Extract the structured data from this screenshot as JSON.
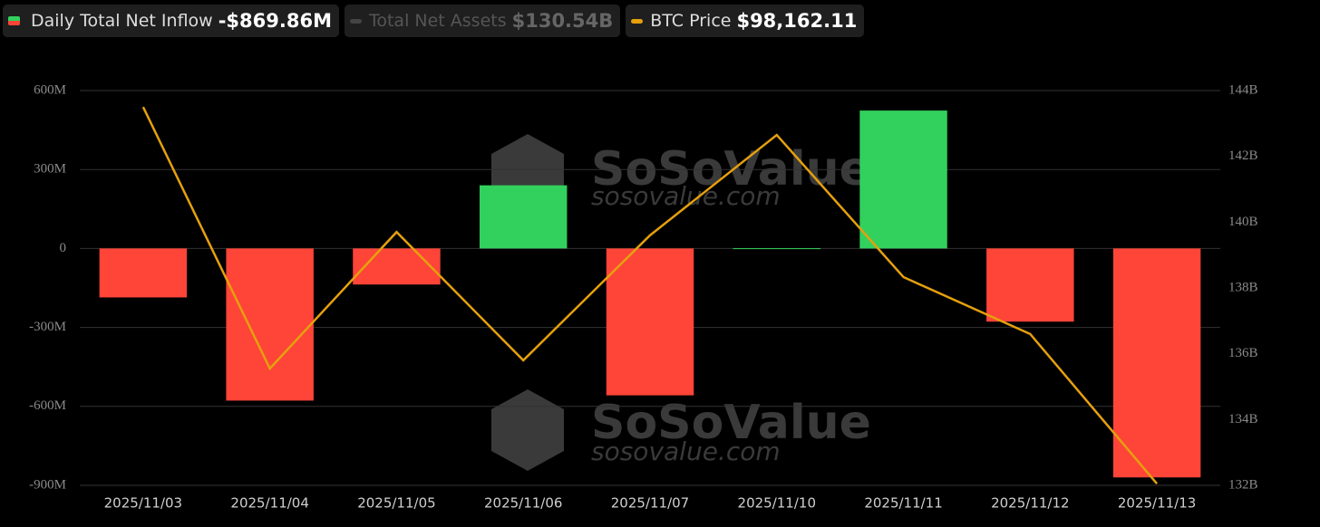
{
  "chart_data": {
    "type": "bar",
    "categories": [
      "2025/11/03",
      "2025/11/04",
      "2025/11/05",
      "2025/11/06",
      "2025/11/07",
      "2025/11/10",
      "2025/11/11",
      "2025/11/12",
      "2025/11/13"
    ],
    "series": [
      {
        "name": "Daily Total Net Inflow",
        "legend_value": "-$869.86M",
        "type": "bar",
        "color": "#ff4438",
        "positive_color": "#32d15d",
        "values": [
          -186,
          -578,
          -137,
          240,
          -558,
          1,
          524,
          -278,
          -869.86
        ]
      },
      {
        "name": "BTC Price",
        "legend_value": "$98,162.11",
        "type": "line",
        "axis": "y2",
        "color": "#e5a00d",
        "values": [
          143.5,
          135.55,
          139.7,
          135.8,
          139.6,
          142.65,
          138.33,
          136.6,
          132.05
        ]
      }
    ],
    "inactive_legend": {
      "name": "Total Net Assets",
      "legend_value": "$130.54B"
    },
    "ylim": [
      -900,
      600
    ],
    "yticks": [
      {
        "value": -900,
        "label": "-900M"
      },
      {
        "value": -600,
        "label": "-600M"
      },
      {
        "value": -300,
        "label": "-300M"
      },
      0,
      {
        "value": 300,
        "label": "300M"
      },
      {
        "value": 600,
        "label": "600M"
      }
    ],
    "y2lim": [
      132,
      144
    ],
    "y2ticks": [
      {
        "value": 132,
        "label": "132B"
      },
      {
        "value": 134,
        "label": "134B"
      },
      {
        "value": 136,
        "label": "136B"
      },
      {
        "value": 138,
        "label": "138B"
      },
      {
        "value": 140,
        "label": "140B"
      },
      {
        "value": 142,
        "label": "142B"
      },
      {
        "value": 144,
        "label": "144B"
      }
    ],
    "grid": true,
    "watermark": [
      "SoSoValue",
      "sosovalue.com"
    ]
  }
}
